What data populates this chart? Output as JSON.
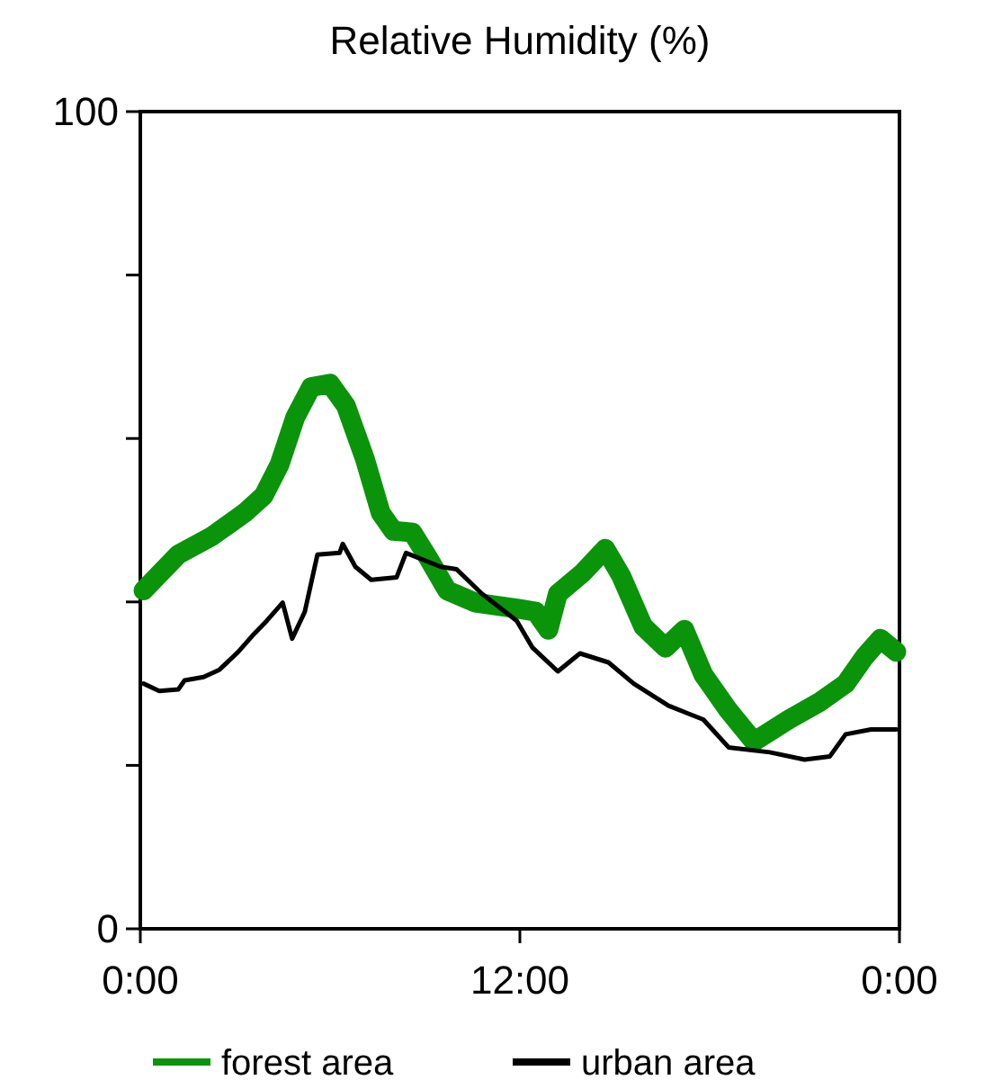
{
  "chart_data": {
    "type": "line",
    "title": "Relative Humidity (%)",
    "xlim": [
      0,
      24
    ],
    "xticks": [
      {
        "value": 0,
        "label": "0:00"
      },
      {
        "value": 12,
        "label": "12:00"
      },
      {
        "value": 24,
        "label": "0:00"
      }
    ],
    "ylim": [
      0,
      100
    ],
    "yticks": [
      0,
      {
        "value": 20,
        "label": null
      },
      {
        "value": 40,
        "label": null
      },
      {
        "value": 60,
        "label": null
      },
      {
        "value": 80,
        "label": null
      },
      100
    ],
    "grid": false,
    "legend": "bottom",
    "marker": "none",
    "line_style": "solid",
    "series": [
      {
        "name": "forest area",
        "color": "#0a940a",
        "x": [
          0.1,
          1.2,
          2.25,
          3.3,
          3.9,
          4.4,
          4.9,
          5.4,
          6.0,
          6.5,
          7.1,
          7.6,
          8.0,
          8.6,
          9.1,
          9.7,
          10.6,
          11.9,
          12.5,
          12.9,
          13.2,
          14.0,
          14.7,
          15.2,
          15.9,
          16.6,
          17.2,
          17.8,
          18.6,
          19.4,
          20.5,
          21.5,
          22.3,
          22.9,
          23.4,
          23.9
        ],
        "values": [
          41.4,
          45.8,
          48,
          50.9,
          53,
          56.8,
          62.6,
          66.3,
          66.7,
          64,
          57.5,
          50.9,
          48.7,
          48.5,
          45.4,
          41.4,
          39.9,
          39.2,
          38.8,
          36.6,
          41,
          43.6,
          46.5,
          43.2,
          37,
          34.4,
          36.6,
          31.1,
          26.7,
          22.9,
          25.6,
          27.8,
          30,
          33.3,
          35.5,
          33.9
        ]
      },
      {
        "name": "urban area",
        "color": "#000000",
        "x": [
          0.1,
          0.6,
          1.2,
          1.4,
          2.0,
          2.5,
          3.1,
          3.6,
          4.0,
          4.5,
          4.8,
          5.2,
          5.6,
          6.3,
          6.4,
          6.8,
          7.3,
          8.1,
          8.4,
          9.5,
          10.0,
          10.8,
          11.9,
          12.4,
          13.2,
          13.9,
          14.8,
          15.6,
          16.7,
          17.8,
          18.6,
          19.9,
          21.0,
          21.8,
          22.3,
          23.1,
          23.9
        ],
        "values": [
          30,
          29.1,
          29.3,
          30.4,
          30.8,
          31.7,
          33.9,
          36.1,
          37.7,
          39.9,
          35.5,
          38.8,
          45.8,
          46,
          47.1,
          44.3,
          42.7,
          43,
          46,
          44.3,
          44,
          41,
          37.7,
          34.4,
          31.5,
          33.7,
          32.6,
          30,
          27.3,
          25.6,
          22.2,
          21.6,
          20.7,
          21.1,
          23.8,
          24.4,
          24.4
        ]
      }
    ]
  }
}
